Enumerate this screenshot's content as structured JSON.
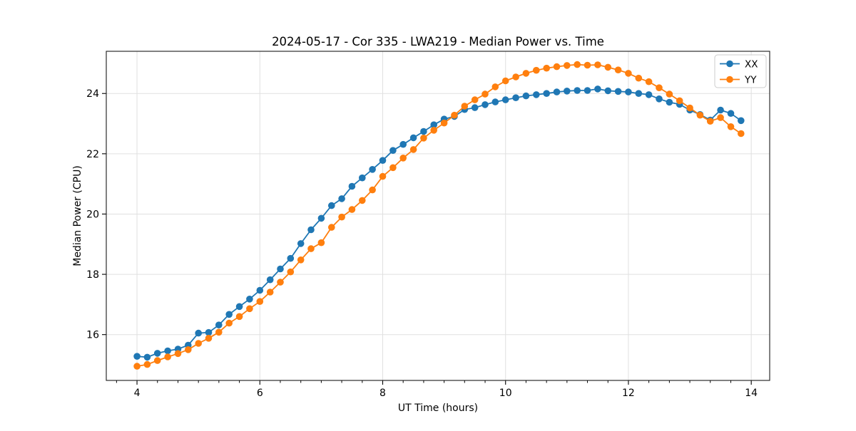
{
  "chart_data": {
    "type": "line",
    "title": "2024-05-17 - Cor 335 - LWA219 - Median Power vs. Time",
    "xlabel": "UT Time (hours)",
    "ylabel": "Median Power (CPU)",
    "xlim": [
      3.5,
      14.3
    ],
    "ylim": [
      14.48,
      25.4
    ],
    "x_ticks": [
      4,
      6,
      8,
      10,
      12,
      14
    ],
    "x_minor_ticks": [
      3.667,
      4.333,
      4.667,
      5.0,
      5.333,
      5.667,
      6.333,
      6.667,
      7.0,
      7.333,
      7.667,
      8.333,
      8.667,
      9.0,
      9.333,
      9.667,
      10.333,
      10.667,
      11.0,
      11.333,
      11.667,
      12.333,
      12.667,
      13.0,
      13.333,
      13.667
    ],
    "y_ticks": [
      16,
      18,
      20,
      22,
      24
    ],
    "grid": "major gridlines on, both axes",
    "grid_color": "#e0e0e0",
    "axes_color": "#000000",
    "background_color": "#ffffff",
    "legend_position": "upper right",
    "x": [
      4.0,
      4.167,
      4.333,
      4.5,
      4.667,
      4.833,
      5.0,
      5.167,
      5.333,
      5.5,
      5.667,
      5.833,
      6.0,
      6.167,
      6.333,
      6.5,
      6.667,
      6.833,
      7.0,
      7.167,
      7.333,
      7.5,
      7.667,
      7.833,
      8.0,
      8.167,
      8.333,
      8.5,
      8.667,
      8.833,
      9.0,
      9.167,
      9.333,
      9.5,
      9.667,
      9.833,
      10.0,
      10.167,
      10.333,
      10.5,
      10.667,
      10.833,
      11.0,
      11.167,
      11.333,
      11.5,
      11.667,
      11.833,
      12.0,
      12.167,
      12.333,
      12.5,
      12.667,
      12.833,
      13.0,
      13.167,
      13.333,
      13.5,
      13.667,
      13.833
    ],
    "series": [
      {
        "name": "XX",
        "color": "#1f77b4",
        "marker": "circle",
        "values": [
          15.28,
          15.25,
          15.38,
          15.46,
          15.52,
          15.65,
          16.05,
          16.07,
          16.32,
          16.67,
          16.93,
          17.18,
          17.47,
          17.82,
          18.18,
          18.53,
          19.02,
          19.48,
          19.86,
          20.28,
          20.51,
          20.92,
          21.2,
          21.48,
          21.78,
          22.11,
          22.31,
          22.53,
          22.74,
          22.96,
          23.15,
          23.24,
          23.47,
          23.53,
          23.63,
          23.72,
          23.79,
          23.86,
          23.92,
          23.96,
          24.0,
          24.05,
          24.08,
          24.1,
          24.1,
          24.15,
          24.09,
          24.07,
          24.05,
          24.0,
          23.96,
          23.82,
          23.71,
          23.64,
          23.45,
          23.3,
          23.12,
          23.45,
          23.34,
          23.1
        ]
      },
      {
        "name": "YY",
        "color": "#ff7f0e",
        "marker": "circle",
        "values": [
          14.95,
          15.01,
          15.14,
          15.26,
          15.37,
          15.5,
          15.71,
          15.88,
          16.08,
          16.38,
          16.6,
          16.86,
          17.1,
          17.41,
          17.74,
          18.08,
          18.48,
          18.85,
          19.05,
          19.56,
          19.9,
          20.15,
          20.45,
          20.8,
          21.25,
          21.54,
          21.86,
          22.14,
          22.52,
          22.78,
          23.02,
          23.28,
          23.58,
          23.79,
          23.98,
          24.22,
          24.42,
          24.55,
          24.67,
          24.77,
          24.84,
          24.89,
          24.93,
          24.96,
          24.94,
          24.95,
          24.87,
          24.78,
          24.67,
          24.51,
          24.39,
          24.19,
          23.98,
          23.76,
          23.52,
          23.28,
          23.08,
          23.2,
          22.9,
          22.67
        ]
      }
    ]
  }
}
